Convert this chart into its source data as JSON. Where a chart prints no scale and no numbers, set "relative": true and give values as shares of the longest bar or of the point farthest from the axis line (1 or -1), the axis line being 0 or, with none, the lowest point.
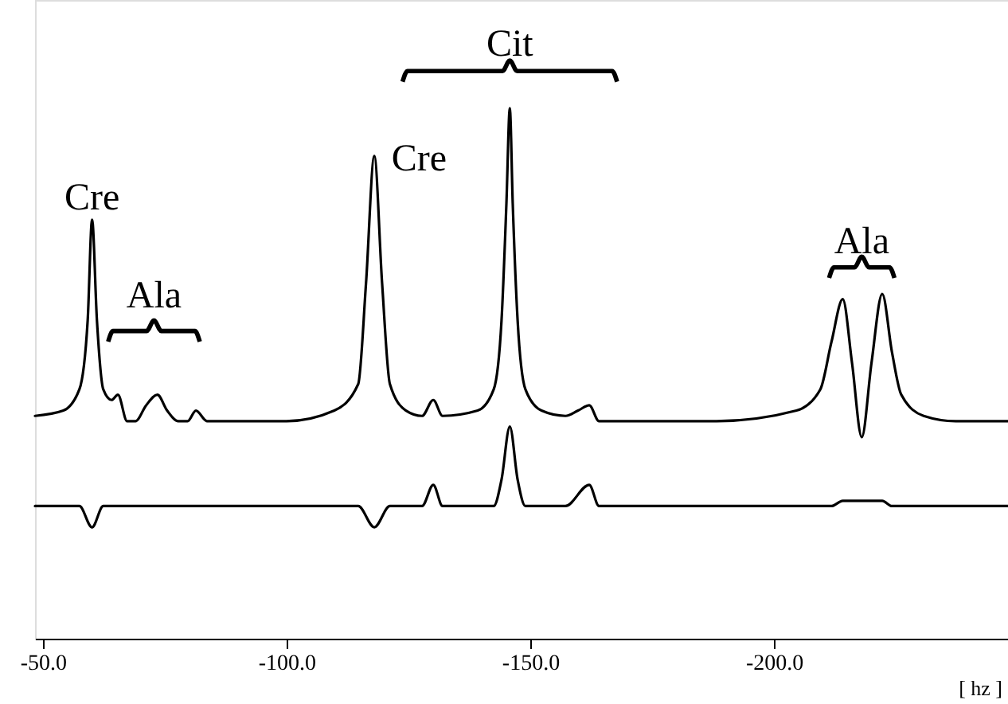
{
  "chart_data": {
    "type": "line",
    "relative": true,
    "xlabel": "[ hz ]",
    "xlim": [
      -48.4,
      -248.0
    ],
    "xticks": [
      {
        "value": -50,
        "label": "-50.0"
      },
      {
        "value": -100,
        "label": "-100.0"
      },
      {
        "value": -150,
        "label": "-150.0"
      },
      {
        "value": -200,
        "label": "-200.0"
      }
    ],
    "series": [
      {
        "color": "#000000",
        "x": [
          -48.4,
          -54.2,
          -57.5,
          -59.2,
          -60.1,
          -61.1,
          -62.4,
          -64.1,
          -65.4,
          -67.3,
          -69.0,
          -71.2,
          -73.5,
          -75.5,
          -77.8,
          -79.7,
          -81.4,
          -83.7,
          -100.0,
          -109.8,
          -114.7,
          -116.3,
          -118.0,
          -119.6,
          -121.2,
          -124.5,
          -127.8,
          -130.1,
          -132.0,
          -139.2,
          -142.5,
          -144.1,
          -145.1,
          -145.8,
          -146.4,
          -147.4,
          -149.0,
          -152.3,
          -157.2,
          -159.8,
          -162.1,
          -164.1,
          -168.6,
          -188.2,
          -204.6,
          -209.5,
          -211.8,
          -214.1,
          -216.0,
          -218.0,
          -220.0,
          -222.2,
          -224.2,
          -226.1,
          -230.7,
          -237.3,
          -248.0
        ],
        "values": [
          0.42,
          0.43,
          0.47,
          0.6,
          0.79,
          0.6,
          0.47,
          0.45,
          0.46,
          0.41,
          0.41,
          0.44,
          0.46,
          0.43,
          0.41,
          0.41,
          0.43,
          0.41,
          0.41,
          0.43,
          0.48,
          0.67,
          0.91,
          0.67,
          0.48,
          0.43,
          0.42,
          0.45,
          0.42,
          0.43,
          0.47,
          0.6,
          0.82,
          1.0,
          0.82,
          0.6,
          0.47,
          0.43,
          0.42,
          0.43,
          0.44,
          0.41,
          0.41,
          0.41,
          0.43,
          0.47,
          0.56,
          0.64,
          0.52,
          0.38,
          0.52,
          0.65,
          0.54,
          0.46,
          0.42,
          0.41,
          0.41
        ]
      },
      {
        "color": "#000000",
        "x": [
          -48.4,
          -57.5,
          -60.1,
          -62.4,
          -100.0,
          -114.7,
          -118.0,
          -121.2,
          -127.8,
          -130.1,
          -132.0,
          -142.5,
          -144.1,
          -145.8,
          -147.4,
          -149.0,
          -157.2,
          -162.1,
          -164.1,
          -211.8,
          -214.1,
          -222.2,
          -224.2,
          -248.0
        ],
        "values": [
          0.25,
          0.25,
          0.21,
          0.25,
          0.25,
          0.25,
          0.21,
          0.25,
          0.25,
          0.29,
          0.25,
          0.25,
          0.3,
          0.4,
          0.3,
          0.25,
          0.25,
          0.29,
          0.25,
          0.25,
          0.26,
          0.26,
          0.25,
          0.25
        ]
      }
    ],
    "annotations": [
      {
        "text": "Cre",
        "x": -60.1,
        "y": 0.79
      },
      {
        "text": "Ala",
        "x": -73.5,
        "y": 0.46
      },
      {
        "text": "Cre",
        "x": -118.0,
        "y": 0.91
      },
      {
        "text": "Cit",
        "x": -145.8,
        "y": 1.0
      },
      {
        "text": "Ala",
        "x": -214.1,
        "y": 0.64
      }
    ]
  }
}
